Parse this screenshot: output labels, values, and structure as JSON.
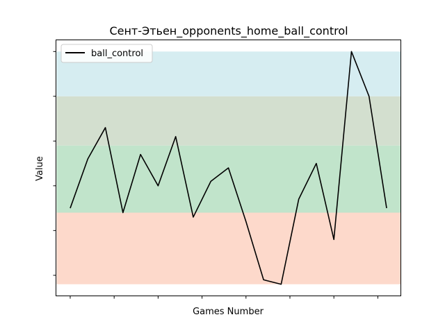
{
  "chart_data": {
    "type": "line",
    "title": "Сент-Этьен_opponents_home_ball_control",
    "xlabel": "Games Number",
    "ylabel": "Value",
    "x": [
      0,
      1,
      2,
      3,
      4,
      5,
      6,
      7,
      8,
      9,
      10,
      11,
      12,
      13,
      14,
      15,
      16,
      17,
      18
    ],
    "series": [
      {
        "name": "ball_control",
        "color": "#000000",
        "values": [
          0.3,
          0.52,
          0.66,
          0.28,
          0.54,
          0.4,
          0.62,
          0.26,
          0.42,
          0.48,
          0.24,
          -0.02,
          -0.04,
          0.34,
          0.5,
          0.16,
          1.0,
          0.8,
          0.3
        ]
      }
    ],
    "ylim": [
      -0.04,
      1.0
    ],
    "y_tick_values": [
      0.0,
      0.2,
      0.4,
      0.6,
      0.8,
      1.0
    ],
    "x_tick_values": [
      0,
      2.5,
      5,
      7.5,
      10,
      12.5,
      15,
      17.5
    ],
    "tick_labels_shown": false,
    "grid": false,
    "legend_position": "upper-left",
    "bands": [
      {
        "from": -0.04,
        "to": 0.28,
        "color": "#fdd9cb"
      },
      {
        "from": 0.28,
        "to": 0.58,
        "color": "#c1e4cb"
      },
      {
        "from": 0.58,
        "to": 0.8,
        "color": "#d3dfcf"
      },
      {
        "from": 0.8,
        "to": 1.0,
        "color": "#d6edf1"
      }
    ]
  }
}
